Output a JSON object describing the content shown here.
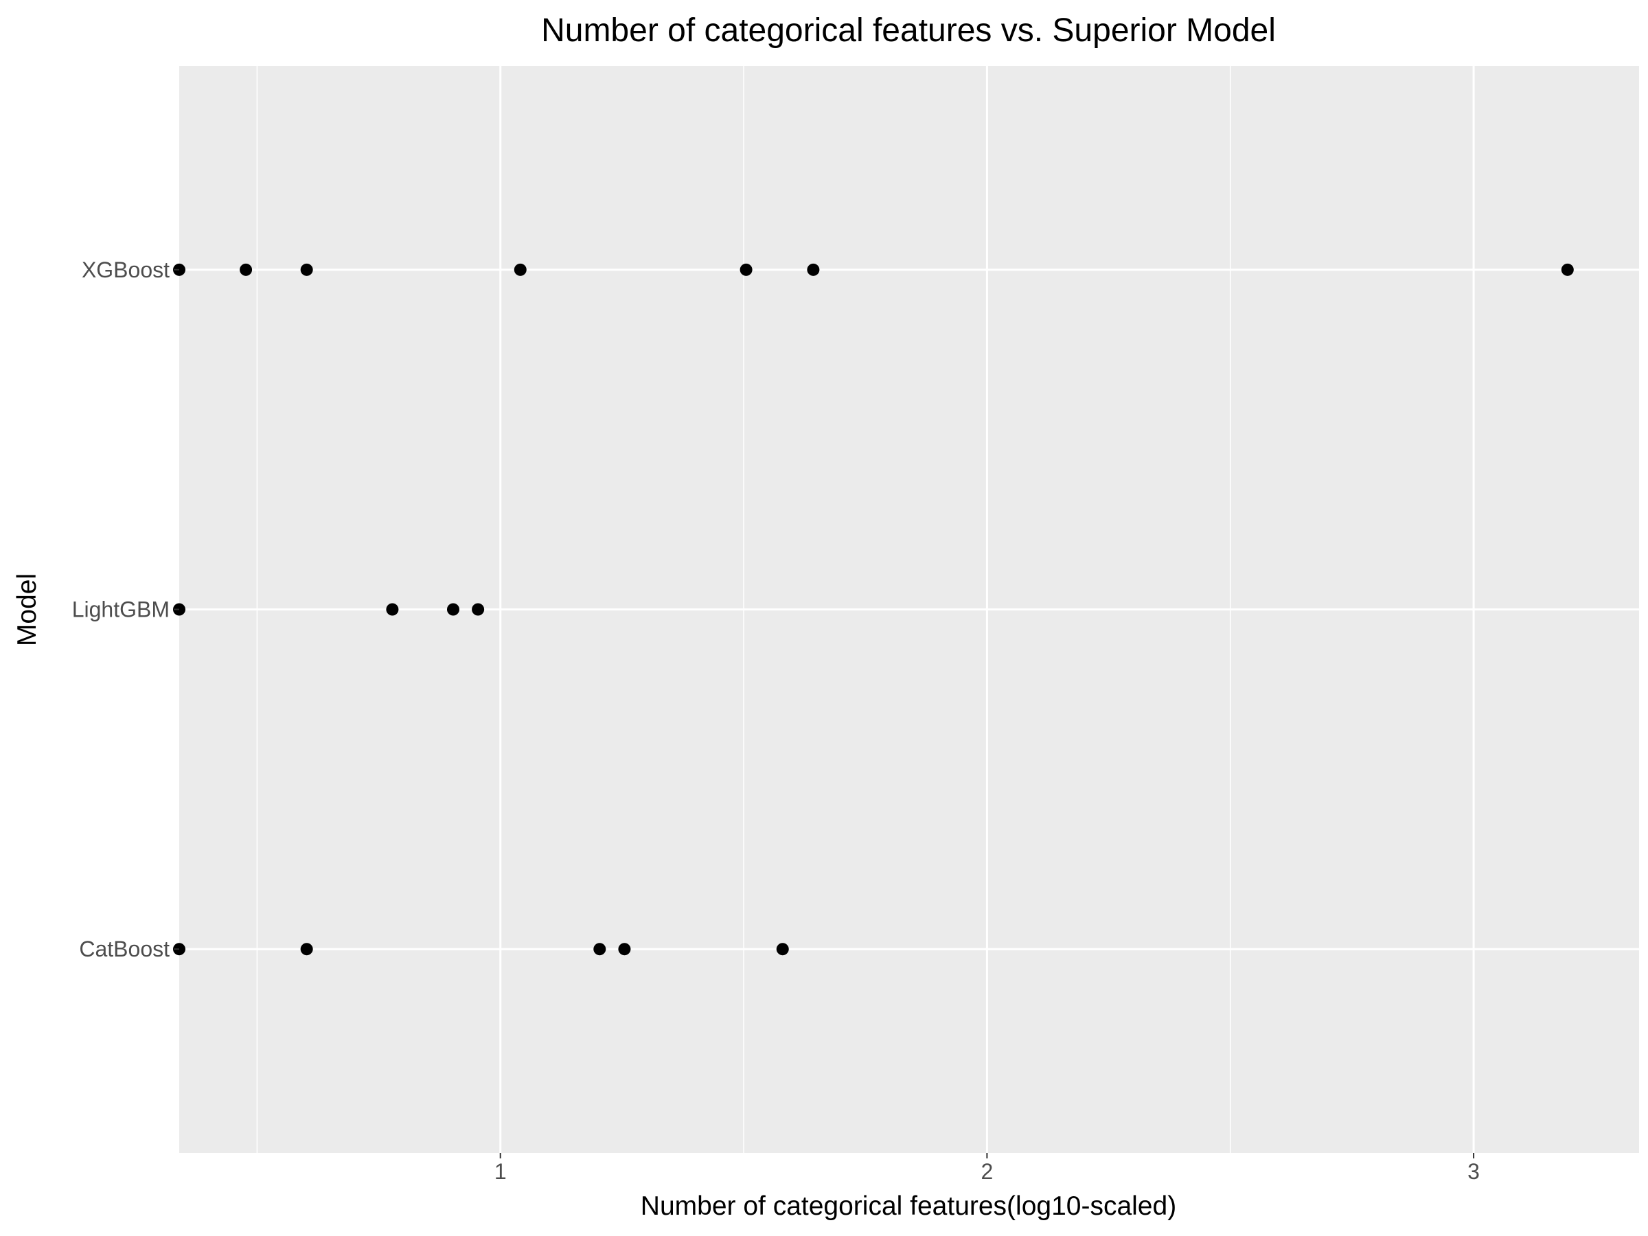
{
  "chart_data": {
    "type": "scatter",
    "title": "Number of categorical features vs. Superior Model",
    "xlabel": "Number of categorical features(log10-scaled)",
    "ylabel": "Model",
    "xlim": [
      0.34,
      3.34
    ],
    "x_ticks": [
      1,
      2,
      3
    ],
    "x_tick_labels": [
      "1",
      "2",
      "3"
    ],
    "categories": [
      "CatBoost",
      "LightGBM",
      "XGBoost"
    ],
    "grid": true,
    "panel_background": "#ebebeb",
    "grid_color": "#ffffff",
    "point_color": "#000000",
    "series": [
      {
        "category": "XGBoost",
        "x": [
          0.34,
          0.477,
          0.602,
          1.041,
          1.505,
          1.643,
          3.193
        ]
      },
      {
        "category": "LightGBM",
        "x": [
          0.34,
          0.778,
          0.903,
          0.954
        ]
      },
      {
        "category": "CatBoost",
        "x": [
          0.34,
          0.602,
          1.204,
          1.255,
          1.58
        ]
      }
    ]
  }
}
